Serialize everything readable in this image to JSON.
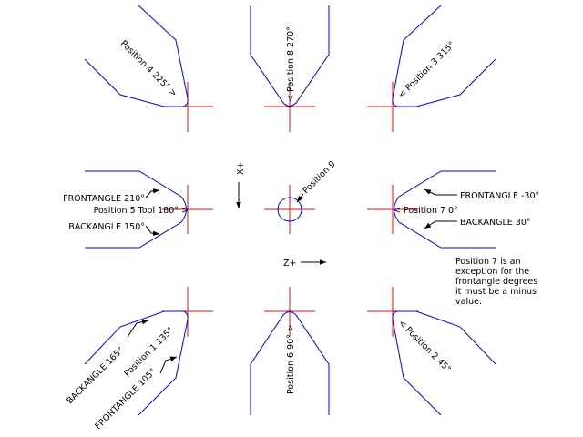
{
  "positions": {
    "p1": "Position 1 135°",
    "p2": "< Position 2 45°",
    "p3": "< Position 3 315°",
    "p4": "Position 4 225° >",
    "p5": "Position 5 Tool 180° >",
    "p6": "Position 6 90° >",
    "p7": "< Position 7 0°",
    "p8": "< Position 8 270°",
    "p9": "Position 9"
  },
  "angles": {
    "frontangle_210": "FRONTANGLE 210°",
    "backangle_150": "BACKANGLE 150°",
    "frontangle_minus30": "FRONTANGLE -30°",
    "backangle_30": "BACKANGLE 30°",
    "backangle_165": "BACKANGLE 165°",
    "frontangle_105": "FRONTANGLE 105°"
  },
  "axes": {
    "x_label": "X+",
    "z_label": "Z+"
  },
  "note": {
    "line1": "Position 7 is an",
    "line2": "exception for the",
    "line3": "frontangle degrees",
    "line4": "it must be a minus",
    "line5": "value."
  },
  "colors": {
    "tool_outline": "#0000ff",
    "crosshair": "#ff0000",
    "annotation": "#000000"
  }
}
